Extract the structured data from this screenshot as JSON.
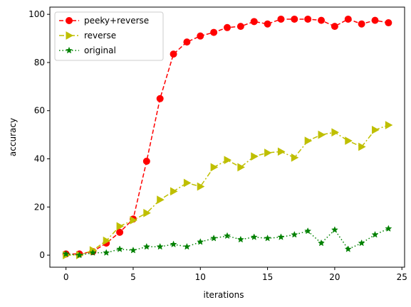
{
  "chart_data": {
    "type": "line",
    "title": "",
    "xlabel": "iterations",
    "ylabel": "accuracy",
    "xlim": [
      -1.2,
      25.2
    ],
    "ylim": [
      -5,
      103
    ],
    "xticks": [
      0,
      5,
      10,
      15,
      20,
      25
    ],
    "yticks": [
      0,
      20,
      40,
      60,
      80,
      100
    ],
    "grid": false,
    "legend": "upper-left",
    "x": [
      0,
      1,
      2,
      3,
      4,
      5,
      6,
      7,
      8,
      9,
      10,
      11,
      12,
      13,
      14,
      15,
      16,
      17,
      18,
      19,
      20,
      21,
      22,
      23,
      24
    ],
    "series": [
      {
        "name": "peeky+reverse",
        "color": "#ff0000",
        "linestyle": "dashed",
        "marker": "circle",
        "values": [
          0.5,
          0.5,
          1.5,
          5,
          9.5,
          15,
          39,
          65,
          83.5,
          88.5,
          91,
          92.5,
          94.5,
          95,
          97,
          96,
          98,
          98,
          98,
          97.5,
          95,
          98,
          96,
          97.5,
          96.5
        ]
      },
      {
        "name": "reverse",
        "color": "#bfbf00",
        "linestyle": "dashdot",
        "marker": "triangle-right",
        "values": [
          0,
          0,
          2,
          6,
          12,
          14.5,
          17.5,
          23,
          26.5,
          30,
          28.5,
          36.5,
          39.5,
          36.5,
          41,
          42.5,
          43,
          40.5,
          47.5,
          50,
          51,
          47.5,
          45,
          52,
          54
        ]
      },
      {
        "name": "original",
        "color": "#008000",
        "linestyle": "dotted",
        "marker": "star",
        "values": [
          0.5,
          0,
          1,
          1,
          2.5,
          2,
          3.5,
          3.5,
          4.5,
          3.5,
          5.5,
          7,
          8,
          6.5,
          7.5,
          7,
          7.5,
          8.5,
          10,
          5,
          10.5,
          2.5,
          5,
          8.5,
          11
        ]
      }
    ]
  }
}
